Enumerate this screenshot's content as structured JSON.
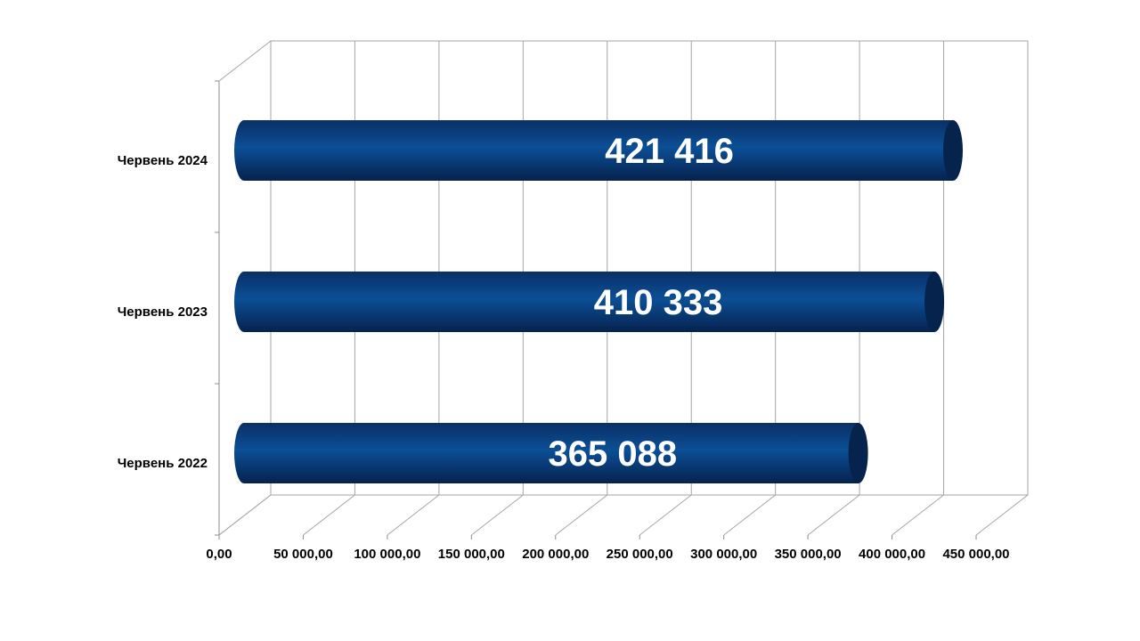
{
  "chart_data": {
    "type": "bar",
    "orientation": "horizontal",
    "style": "3d-cylinder",
    "categories": [
      "Червень 2024",
      "Червень 2023",
      "Червень 2022"
    ],
    "values": [
      421416,
      410333,
      365088
    ],
    "value_labels": [
      "421 416",
      "410 333",
      "365 088"
    ],
    "xlim": [
      0,
      450000
    ],
    "x_ticks": [
      0,
      50000,
      100000,
      150000,
      200000,
      250000,
      300000,
      350000,
      400000,
      450000
    ],
    "x_tick_labels": [
      "0,00",
      "50 000,00",
      "100 000,00",
      "150 000,00",
      "200 000,00",
      "250 000,00",
      "300 000,00",
      "350 000,00",
      "400 000,00",
      "450 000,00"
    ],
    "title": "",
    "xlabel": "",
    "ylabel": "",
    "grid": true,
    "legend": "none",
    "colors": {
      "bar_dark": "#0a2a5c",
      "bar_mid": "#0b4a8f",
      "bar_cap": "#06234d",
      "grid": "#a6a6a6",
      "label": "#ffffff"
    }
  }
}
